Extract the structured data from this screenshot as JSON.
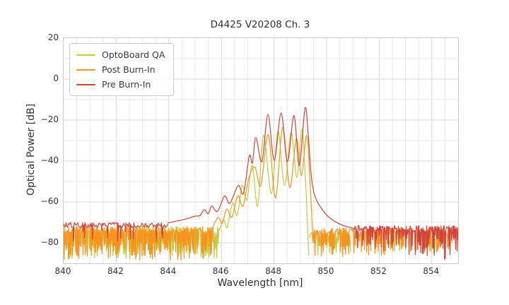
{
  "chart_data": {
    "type": "line",
    "title": "D4425 V20208 Ch. 3",
    "xlabel": "Wavelength [nm]",
    "ylabel": "Optical Power [dB]",
    "xlim": [
      840,
      855
    ],
    "ylim": [
      -90,
      20
    ],
    "x_ticks": [
      840,
      842,
      844,
      846,
      848,
      850,
      852,
      854
    ],
    "y_ticks": [
      20,
      0,
      -20,
      -40,
      -60,
      -80
    ],
    "x_minor_step": 0.5,
    "y_minor_step": 10,
    "grid": true,
    "legend_position": "upper left",
    "grid_minor_color": "#e8e8e8",
    "grid_major_color": "#d7d7d7",
    "series": [
      {
        "name": "OptoBoard QA",
        "color": "#c3ca3a",
        "segments": [
          {
            "t": "noise",
            "x0": 840,
            "x1": 845.92,
            "top": -74,
            "jit": 2.0,
            "p": 0.7,
            "dmin": 4,
            "dmax": 14,
            "step": 0.05
          },
          {
            "t": "smooth",
            "pts": [
              [
                845.92,
                -74
              ],
              [
                846.08,
                -68.5
              ],
              [
                846.22,
                -72.5
              ],
              [
                846.43,
                -60.5
              ],
              [
                846.6,
                -66.5
              ],
              [
                846.79,
                -52
              ],
              [
                846.97,
                -59
              ],
              [
                847.17,
                -42
              ],
              [
                847.38,
                -62
              ],
              [
                847.6,
                -27.5
              ],
              [
                847.9,
                -56
              ],
              [
                848.15,
                -25.5
              ],
              [
                848.4,
                -52
              ],
              [
                848.65,
                -26
              ],
              [
                848.87,
                -48
              ],
              [
                849.06,
                -24.5
              ],
              [
                849.18,
                -45
              ],
              [
                849.27,
                -70
              ],
              [
                849.32,
                -86
              ]
            ]
          },
          {
            "t": "noise",
            "x0": 849.34,
            "x1": 850.9,
            "top": -76,
            "jit": 2.5,
            "p": 0.55,
            "dmin": 3,
            "dmax": 11,
            "step": 0.05
          },
          {
            "t": "noise",
            "x0": 852.35,
            "x1": 852.8,
            "top": -77,
            "jit": 2.0,
            "p": 0.4,
            "dmin": 3,
            "dmax": 8,
            "step": 0.05
          },
          {
            "t": "noise",
            "x0": 853.85,
            "x1": 854.15,
            "top": -77,
            "jit": 2.0,
            "p": 0.4,
            "dmin": 3,
            "dmax": 8,
            "step": 0.05
          }
        ]
      },
      {
        "name": "Post Burn-In",
        "color": "#f8931f",
        "segments": [
          {
            "t": "noise",
            "x0": 840,
            "x1": 845.68,
            "top": -73.5,
            "jit": 1.7,
            "p": 0.8,
            "dmin": 5,
            "dmax": 15,
            "step": 0.04
          },
          {
            "t": "smooth",
            "pts": [
              [
                845.68,
                -72
              ],
              [
                845.88,
                -67.5
              ],
              [
                846.03,
                -70.5
              ],
              [
                846.2,
                -63.5
              ],
              [
                846.4,
                -67.5
              ],
              [
                846.62,
                -57
              ],
              [
                846.82,
                -62
              ],
              [
                847.05,
                -48
              ],
              [
                847.28,
                -43
              ],
              [
                847.5,
                -52
              ],
              [
                847.78,
                -27.2
              ],
              [
                848.06,
                -58
              ],
              [
                848.33,
                -23.5
              ],
              [
                848.6,
                -53
              ],
              [
                848.85,
                -29
              ],
              [
                849.04,
                -47
              ],
              [
                849.24,
                -27.5
              ],
              [
                849.36,
                -48
              ],
              [
                849.44,
                -68
              ],
              [
                849.48,
                -78
              ]
            ]
          },
          {
            "t": "noise",
            "x0": 849.5,
            "x1": 855,
            "top": -74.5,
            "jit": 1.8,
            "p": 0.8,
            "p2": 0.35,
            "dmin": 4,
            "dmax": 13,
            "dmax2": 10,
            "step": 0.04
          }
        ]
      },
      {
        "name": "Pre Burn-In",
        "color": "#d2443a",
        "segments": [
          {
            "t": "noise",
            "x0": 840,
            "x1": 843.95,
            "top": -71.3,
            "jit": 1.3,
            "p": 0.09,
            "dmin": 2.5,
            "dmax": 9,
            "step": 0.03
          },
          {
            "t": "smooth",
            "pts": [
              [
                843.95,
                -70.3
              ],
              [
                844.35,
                -69.2
              ],
              [
                844.7,
                -68.2
              ],
              [
                845.0,
                -66.9
              ],
              [
                845.18,
                -66.7
              ],
              [
                845.35,
                -63.8
              ],
              [
                845.5,
                -65.8
              ],
              [
                845.63,
                -62
              ],
              [
                845.85,
                -64.6
              ],
              [
                846.12,
                -57.1
              ],
              [
                846.32,
                -60.6
              ],
              [
                846.64,
                -52
              ],
              [
                846.84,
                -55.8
              ],
              [
                847.06,
                -37.5
              ],
              [
                847.18,
                -41
              ],
              [
                847.31,
                -28.5
              ],
              [
                847.54,
                -40.3
              ],
              [
                847.77,
                -17.3
              ],
              [
                848.01,
                -39.7
              ],
              [
                848.27,
                -16.5
              ],
              [
                848.51,
                -40.3
              ],
              [
                848.76,
                -17.8
              ],
              [
                848.96,
                -42.2
              ],
              [
                849.18,
                -14.2
              ],
              [
                849.3,
                -27
              ],
              [
                849.4,
                -45
              ],
              [
                849.5,
                -54.5
              ],
              [
                849.63,
                -59.5
              ],
              [
                849.82,
                -63.5
              ],
              [
                850.05,
                -67
              ],
              [
                850.35,
                -69.8
              ],
              [
                850.7,
                -71.8
              ],
              [
                851.05,
                -73
              ]
            ]
          },
          {
            "t": "noise",
            "x0": 851.05,
            "x1": 855,
            "top": -73.2,
            "jit": 1.7,
            "p": 0.35,
            "p2": 0.8,
            "dmin": 2.5,
            "dmax": 9,
            "dmax2": 16,
            "step": 0.03
          }
        ]
      }
    ]
  }
}
